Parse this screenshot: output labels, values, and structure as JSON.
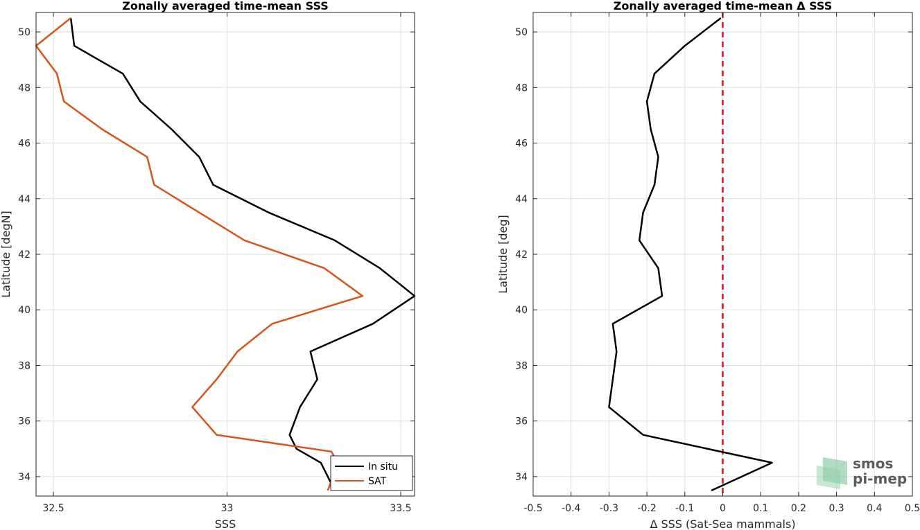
{
  "chart_data": [
    {
      "type": "line",
      "title": "Zonally averaged time-mean SSS",
      "xlabel": "SSS",
      "ylabel": "Latitude [degN]",
      "xlim": [
        32.45,
        33.54
      ],
      "ylim": [
        33.3,
        50.7
      ],
      "xticks": [
        32.5,
        33,
        33.5
      ],
      "xtick_labels": [
        "32.5",
        "33",
        "33.5"
      ],
      "yticks": [
        34,
        36,
        38,
        40,
        42,
        44,
        46,
        48,
        50
      ],
      "ytick_labels": [
        "34",
        "36",
        "38",
        "40",
        "42",
        "44",
        "46",
        "48",
        "50"
      ],
      "grid": true,
      "legend_position": "bottom-right",
      "series": [
        {
          "name": "In situ",
          "color": "#000000",
          "x": [
            33.31,
            33.27,
            33.2,
            33.18,
            33.21,
            33.26,
            33.24,
            33.42,
            33.54,
            33.44,
            33.31,
            33.12,
            32.96,
            32.92,
            32.84,
            32.75,
            32.7,
            32.56,
            32.55
          ],
          "y": [
            33.5,
            34.5,
            35,
            35.5,
            36.5,
            37.5,
            38.5,
            39.5,
            40.5,
            41.5,
            42.5,
            43.5,
            44.5,
            45.5,
            46.5,
            47.5,
            48.5,
            49.5,
            50.5
          ]
        },
        {
          "name": "SAT",
          "color": "#d95319",
          "x": [
            33.29,
            33.32,
            33.3,
            32.97,
            32.9,
            32.97,
            33.03,
            33.13,
            33.39,
            33.28,
            33.05,
            32.92,
            32.79,
            32.77,
            32.64,
            32.53,
            32.51,
            32.45,
            32.55
          ],
          "y": [
            33.5,
            34.5,
            34.9,
            35.5,
            36.5,
            37.5,
            38.5,
            39.5,
            40.5,
            41.5,
            42.5,
            43.5,
            44.5,
            45.5,
            46.5,
            47.5,
            48.5,
            49.5,
            50.5
          ]
        }
      ]
    },
    {
      "type": "line",
      "title": "Zonally averaged time-mean Δ SSS",
      "xlabel": "Δ SSS (Sat-Sea mammals)",
      "ylabel": "Latitude [deg]",
      "xlim": [
        -0.5,
        0.5
      ],
      "ylim": [
        33.3,
        50.7
      ],
      "xticks": [
        -0.5,
        -0.4,
        -0.3,
        -0.2,
        -0.1,
        0,
        0.1,
        0.2,
        0.3,
        0.4,
        0.5
      ],
      "xtick_labels": [
        "-0.5",
        "-0.4",
        "-0.3",
        "-0.2",
        "-0.1",
        "0",
        "0.1",
        "0.2",
        "0.3",
        "0.4",
        "0.5"
      ],
      "yticks": [
        34,
        36,
        38,
        40,
        42,
        44,
        46,
        48,
        50
      ],
      "ytick_labels": [
        "34",
        "36",
        "38",
        "40",
        "42",
        "44",
        "46",
        "48",
        "50"
      ],
      "grid": true,
      "reference_line": {
        "x": 0,
        "color": "#e0141c",
        "style": "dashed"
      },
      "series": [
        {
          "color": "#000000",
          "x": [
            -0.03,
            0.13,
            -0.21,
            -0.3,
            -0.29,
            -0.28,
            -0.29,
            -0.16,
            -0.17,
            -0.22,
            -0.21,
            -0.18,
            -0.17,
            -0.19,
            -0.2,
            -0.18,
            -0.1,
            -0.005
          ],
          "y": [
            33.5,
            34.5,
            35.5,
            36.5,
            37.5,
            38.5,
            39.5,
            40.5,
            41.5,
            42.5,
            43.5,
            44.5,
            45.5,
            46.5,
            47.5,
            48.5,
            49.5,
            50.5
          ]
        }
      ]
    }
  ],
  "watermark": {
    "line1": "smos",
    "line2": "pi-mep",
    "color": "#6fbf8f"
  }
}
